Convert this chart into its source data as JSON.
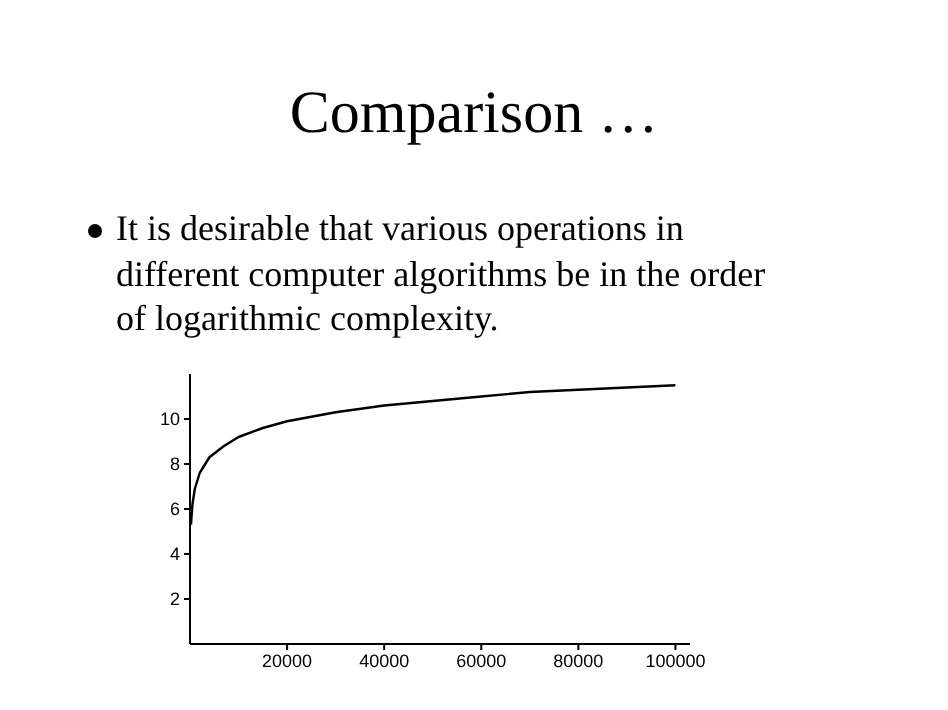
{
  "chart_data": {
    "type": "line",
    "title": "Comparison …",
    "subtitle": "It is desirable that various operations in different computer algorithms be in the order of logarithmic complexity.",
    "x": [
      200,
      500,
      1000,
      2000,
      4000,
      7000,
      10000,
      15000,
      20000,
      30000,
      40000,
      50000,
      60000,
      70000,
      80000,
      90000,
      100000
    ],
    "series": [
      {
        "color": "#000000",
        "values": [
          5.3,
          6.2,
          6.9,
          7.6,
          8.3,
          8.8,
          9.2,
          9.6,
          9.9,
          10.3,
          10.6,
          10.8,
          11.0,
          11.2,
          11.3,
          11.4,
          11.5
        ]
      }
    ],
    "xlim": [
      0,
      103000
    ],
    "xticks": [
      20000,
      40000,
      60000,
      80000,
      100000
    ],
    "ylim": [
      0,
      12
    ],
    "yticks": [
      2,
      4,
      6,
      8,
      10
    ],
    "grid": false,
    "legend": false,
    "marker": "none",
    "line_style": "solid"
  }
}
